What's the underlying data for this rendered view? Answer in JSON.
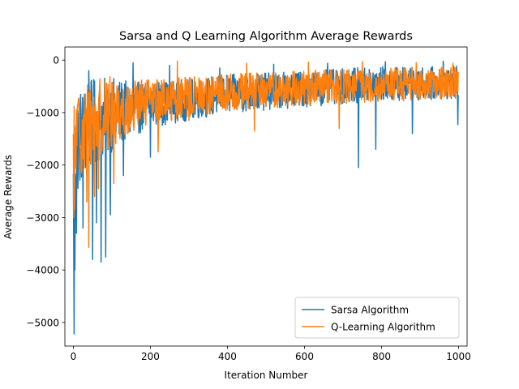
{
  "chart_data": {
    "type": "line",
    "title": "Sarsa and Q Learning Algorithm Average Rewards",
    "xlabel": "Iteration Number",
    "ylabel": "Average Rewards",
    "xlim": [
      -22,
      1022
    ],
    "ylim": [
      -5450,
      250
    ],
    "xticks": [
      0,
      200,
      400,
      600,
      800,
      1000
    ],
    "yticks": [
      0,
      -1000,
      -2000,
      -3000,
      -4000,
      -5000
    ],
    "grid": false,
    "legend_position": "lower-right",
    "n_points": 1000,
    "series": [
      {
        "name": "Sarsa Algorithm",
        "color": "#1f77b4",
        "envelope_x": [
          0,
          5,
          15,
          30,
          50,
          75,
          100,
          150,
          200,
          300,
          400,
          500,
          600,
          700,
          800,
          900,
          1000
        ],
        "envelope_mean": [
          -2800,
          -1700,
          -1500,
          -1350,
          -1200,
          -1100,
          -1050,
          -950,
          -850,
          -750,
          -650,
          -600,
          -550,
          -500,
          -450,
          -450,
          -420
        ],
        "envelope_spread": [
          1400,
          1100,
          900,
          850,
          800,
          750,
          700,
          500,
          420,
          380,
          360,
          340,
          330,
          320,
          320,
          300,
          300
        ],
        "spikes": [
          [
            2,
            -5220
          ],
          [
            4,
            -4000
          ],
          [
            1,
            -3600
          ],
          [
            8,
            -3300
          ],
          [
            25,
            -3200
          ],
          [
            50,
            -3800
          ],
          [
            60,
            -3100
          ],
          [
            72,
            -3850
          ],
          [
            84,
            -3750
          ],
          [
            96,
            -2950
          ],
          [
            130,
            -2200
          ],
          [
            200,
            -1850
          ],
          [
            740,
            -2050
          ],
          [
            785,
            -1700
          ],
          [
            880,
            -1400
          ],
          [
            998,
            -1230
          ],
          [
            40,
            -200
          ],
          [
            155,
            -50
          ],
          [
            250,
            -100
          ],
          [
            380,
            -150
          ],
          [
            520,
            -80
          ],
          [
            660,
            -60
          ],
          [
            810,
            -30
          ],
          [
            960,
            -20
          ]
        ]
      },
      {
        "name": "Q-Learning Algorithm",
        "color": "#ff7f0e",
        "envelope_x": [
          0,
          5,
          15,
          30,
          50,
          75,
          100,
          150,
          200,
          300,
          400,
          500,
          600,
          700,
          800,
          900,
          1000
        ],
        "envelope_mean": [
          -2000,
          -1500,
          -1400,
          -1250,
          -1150,
          -1050,
          -1000,
          -900,
          -800,
          -700,
          -620,
          -580,
          -530,
          -500,
          -470,
          -450,
          -430
        ],
        "envelope_spread": [
          1000,
          900,
          850,
          800,
          750,
          700,
          650,
          480,
          420,
          370,
          350,
          330,
          320,
          310,
          300,
          300,
          290
        ],
        "spikes": [
          [
            1,
            -3000
          ],
          [
            3,
            -2850
          ],
          [
            35,
            -2700
          ],
          [
            40,
            -3570
          ],
          [
            55,
            -2600
          ],
          [
            65,
            -2450
          ],
          [
            105,
            -2350
          ],
          [
            220,
            -1750
          ],
          [
            300,
            -1150
          ],
          [
            470,
            -1350
          ],
          [
            690,
            -1300
          ],
          [
            270,
            -20
          ],
          [
            450,
            -60
          ],
          [
            610,
            -40
          ],
          [
            750,
            -30
          ],
          [
            890,
            -50
          ],
          [
            985,
            -60
          ]
        ]
      }
    ]
  }
}
